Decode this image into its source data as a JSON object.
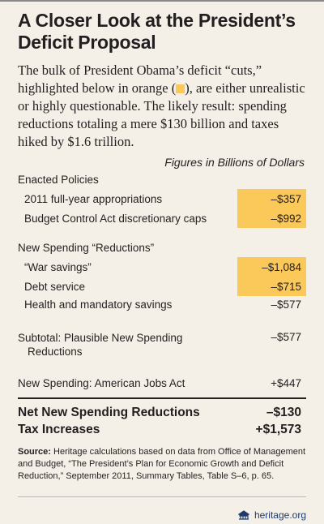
{
  "title": "A Closer Look at the President’s Deficit Proposal",
  "intro": {
    "before": "The bulk of President Obama’s deficit “cuts,” highlighted below in orange (",
    "after": "), are either unrealistic or highly questionable. The likely result: spending reductions totaling a mere $130 billion and taxes hiked by $1.6 trillion."
  },
  "units_note": "Figures in Billions of Dollars",
  "rows": [
    {
      "label": "Enacted Policies"
    },
    {
      "label": "2011 full-year appropriations",
      "value": "–$357",
      "highlight": true
    },
    {
      "label": "Budget Control Act discretionary caps",
      "value": "–$992",
      "highlight": true
    },
    {
      "label": "New Spending “Reductions”"
    },
    {
      "label": "“War savings”",
      "value": "–$1,084",
      "highlight": true
    },
    {
      "label": "Debt service",
      "value": "–$715",
      "highlight": true
    },
    {
      "label": "Health and mandatory savings",
      "value": "–$577",
      "highlight": false
    },
    {
      "label": "Subtotal: Plausible New Spending Reductions",
      "value": "–$577"
    },
    {
      "label": "New Spending: American Jobs Act",
      "value": "+$447"
    },
    {
      "label": "Net New Spending Reductions",
      "value": "–$130"
    },
    {
      "label": "Tax Increases",
      "value": "+$1,573"
    }
  ],
  "source": {
    "label": "Source:",
    "text": "Heritage calculations based on data from Office of Management and Budget, “The President’s Plan for Economic Growth and Deficit Reduction,” September 2011, Summary Tables, Table S–6, p. 65."
  },
  "footer": "heritage.org"
}
